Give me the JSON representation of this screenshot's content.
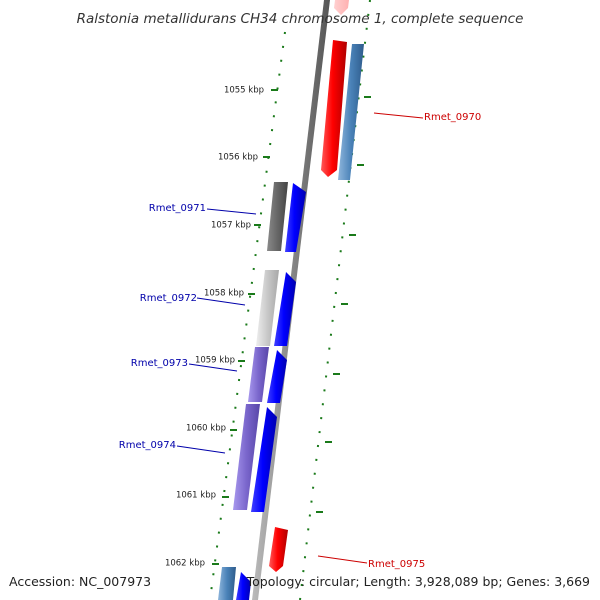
{
  "title": "Ralstonia metallidurans CH34 chromosome 1, complete sequence",
  "footer": {
    "accession": "Accession: NC_007973",
    "topology": "Topology: circular; Length: 3,928,089 bp; Genes: 3,669"
  },
  "ticks": [
    "1055 kbp",
    "1056 kbp",
    "1057 kbp",
    "1058 kbp",
    "1059 kbp",
    "1060 kbp",
    "1061 kbp",
    "1062 kbp"
  ],
  "gene_labels": [
    {
      "text": "Rmet_0970",
      "color": "#cc0000"
    },
    {
      "text": "Rmet_0971",
      "color": "#0000aa"
    },
    {
      "text": "Rmet_0972",
      "color": "#0000aa"
    },
    {
      "text": "Rmet_0973",
      "color": "#0000aa"
    },
    {
      "text": "Rmet_0974",
      "color": "#0000aa"
    },
    {
      "text": "Rmet_0975",
      "color": "#cc0000"
    }
  ],
  "colors": {
    "forward_strand": "#ff0000",
    "reverse_strand": "#0000ff",
    "backbone": "#888888",
    "tick_marks": "#1a7a1a",
    "cog_blue": "#4a82b8",
    "cog_grey_dark": "#666666",
    "cog_grey_light": "#c8c8c8",
    "cog_purple": "#7a66cc"
  }
}
